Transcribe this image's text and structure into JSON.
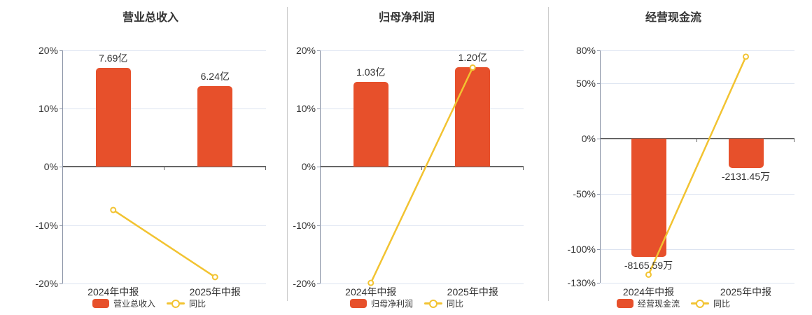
{
  "colors": {
    "background": "#ffffff",
    "bar": "#e7502b",
    "line": "#f2c331",
    "marker_fill": "#ffffff",
    "text": "#333333",
    "zero_axis": "#666666",
    "y_axis": "#8a93a6",
    "grid": "#dde4f1",
    "divider": "#cccccc"
  },
  "chart_data": [
    {
      "type": "bar",
      "title": "营业总收入",
      "categories": [
        "2024年中报",
        "2025年中报"
      ],
      "ylim": [
        -20,
        20
      ],
      "yticks": [
        20,
        10,
        0,
        -10,
        -20
      ],
      "ytick_suffix": "%",
      "grid": "on",
      "legend_position": "bottom",
      "series": [
        {
          "name": "营业总收入",
          "type": "bar",
          "value_labels": [
            "7.69亿",
            "6.24亿"
          ],
          "values_abs": [
            7.69,
            6.24
          ],
          "unit": "亿",
          "plotted_pct": [
            17.0,
            13.8
          ]
        },
        {
          "name": "同比",
          "type": "line",
          "values_pct": [
            -7.4,
            -18.9
          ]
        }
      ]
    },
    {
      "type": "bar",
      "title": "归母净利润",
      "categories": [
        "2024年中报",
        "2025年中报"
      ],
      "ylim": [
        -20,
        20
      ],
      "yticks": [
        20,
        10,
        0,
        -10,
        -20
      ],
      "ytick_suffix": "%",
      "grid": "on",
      "legend_position": "bottom",
      "series": [
        {
          "name": "归母净利润",
          "type": "bar",
          "value_labels": [
            "1.03亿",
            "1.20亿"
          ],
          "values_abs": [
            1.03,
            1.2
          ],
          "unit": "亿",
          "plotted_pct": [
            14.5,
            17.1
          ]
        },
        {
          "name": "同比",
          "type": "line",
          "values_pct": [
            -19.9,
            17.0
          ]
        }
      ]
    },
    {
      "type": "bar",
      "title": "经营现金流",
      "categories": [
        "2024年中报",
        "2025年中报"
      ],
      "ylim": [
        -130,
        80
      ],
      "yticks": [
        80,
        50,
        0,
        -50,
        -100,
        -130
      ],
      "ytick_suffix": "%",
      "grid": "on",
      "legend_position": "bottom",
      "series": [
        {
          "name": "经营现金流",
          "type": "bar",
          "value_labels": [
            "-8165.59万",
            "-2131.45万"
          ],
          "values_abs": [
            -8165.59,
            -2131.45
          ],
          "unit": "万",
          "plotted_pct": [
            -106.8,
            -26.6
          ]
        },
        {
          "name": "同比",
          "type": "line",
          "values_pct": [
            -123.0,
            74.0
          ]
        }
      ]
    }
  ]
}
